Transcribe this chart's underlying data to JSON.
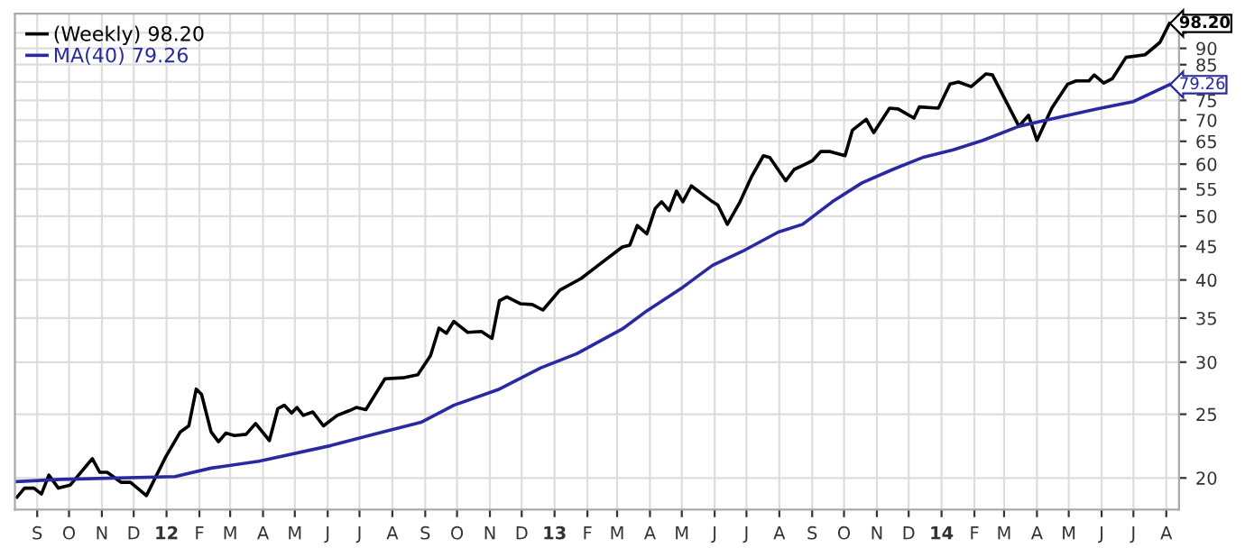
{
  "chart_data": {
    "type": "line",
    "log": "y",
    "grid": true,
    "legend": "top left",
    "marker": "none",
    "line_style": "solid",
    "xlim": [
      "2011-08-11",
      "2014-08-13"
    ],
    "ylim": [
      17.9,
      101.6
    ],
    "yticks": [
      20,
      25,
      30,
      35,
      40,
      45,
      50,
      55,
      60,
      65,
      70,
      75,
      {
        "value": 80,
        "label": null
      },
      85,
      90,
      {
        "value": 95,
        "label": null
      }
    ],
    "xticks": [
      {
        "value": "2011-09-01",
        "label": "S"
      },
      {
        "value": "2011-10-01",
        "label": "O"
      },
      {
        "value": "2011-11-01",
        "label": "N"
      },
      {
        "value": "2011-12-01",
        "label": "D"
      },
      {
        "value": "2012-01-01",
        "label": "12"
      },
      {
        "value": "2012-02-01",
        "label": "F"
      },
      {
        "value": "2012-03-01",
        "label": "M"
      },
      {
        "value": "2012-04-01",
        "label": "A"
      },
      {
        "value": "2012-05-01",
        "label": "M"
      },
      {
        "value": "2012-06-01",
        "label": "J"
      },
      {
        "value": "2012-07-01",
        "label": "J"
      },
      {
        "value": "2012-08-01",
        "label": "A"
      },
      {
        "value": "2012-09-01",
        "label": "S"
      },
      {
        "value": "2012-10-01",
        "label": "O"
      },
      {
        "value": "2012-11-01",
        "label": "N"
      },
      {
        "value": "2012-12-01",
        "label": "D"
      },
      {
        "value": "2013-01-01",
        "label": "13"
      },
      {
        "value": "2013-02-01",
        "label": "F"
      },
      {
        "value": "2013-03-01",
        "label": "M"
      },
      {
        "value": "2013-04-01",
        "label": "A"
      },
      {
        "value": "2013-05-01",
        "label": "M"
      },
      {
        "value": "2013-06-01",
        "label": "J"
      },
      {
        "value": "2013-07-01",
        "label": "J"
      },
      {
        "value": "2013-08-01",
        "label": "A"
      },
      {
        "value": "2013-09-01",
        "label": "S"
      },
      {
        "value": "2013-10-01",
        "label": "O"
      },
      {
        "value": "2013-11-01",
        "label": "N"
      },
      {
        "value": "2013-12-01",
        "label": "D"
      },
      {
        "value": "2014-01-01",
        "label": "14"
      },
      {
        "value": "2014-02-01",
        "label": "F"
      },
      {
        "value": "2014-03-01",
        "label": "M"
      },
      {
        "value": "2014-04-01",
        "label": "A"
      },
      {
        "value": "2014-05-01",
        "label": "M"
      },
      {
        "value": "2014-06-01",
        "label": "J"
      },
      {
        "value": "2014-07-01",
        "label": "J"
      },
      {
        "value": "2014-08-01",
        "label": "A"
      }
    ],
    "series": [
      {
        "name": "(Weekly) 98.20",
        "color": "#000000",
        "x": [
          "2011-08-13",
          "2011-08-20",
          "2011-08-29",
          "2011-09-05",
          "2011-09-12",
          "2011-09-21",
          "2011-10-02",
          "2011-10-23",
          "2011-10-30",
          "2011-11-06",
          "2011-11-19",
          "2011-11-28",
          "2011-12-13",
          "2011-12-31",
          "2012-01-14",
          "2012-01-22",
          "2012-01-29",
          "2012-02-03",
          "2012-02-12",
          "2012-02-19",
          "2012-02-26",
          "2012-03-05",
          "2012-03-16",
          "2012-03-25",
          "2012-04-07",
          "2012-04-15",
          "2012-04-21",
          "2012-04-28",
          "2012-05-03",
          "2012-05-09",
          "2012-05-18",
          "2012-05-28",
          "2012-06-10",
          "2012-06-21",
          "2012-06-28",
          "2012-07-07",
          "2012-07-25",
          "2012-08-11",
          "2012-08-25",
          "2012-09-06",
          "2012-09-14",
          "2012-09-21",
          "2012-09-28",
          "2012-10-11",
          "2012-10-24",
          "2012-11-03",
          "2012-11-10",
          "2012-11-17",
          "2012-11-30",
          "2012-12-11",
          "2012-12-21",
          "2013-01-06",
          "2013-01-26",
          "2013-02-12",
          "2013-03-06",
          "2013-03-13",
          "2013-03-20",
          "2013-03-29",
          "2013-04-06",
          "2013-04-12",
          "2013-04-19",
          "2013-04-26",
          "2013-05-02",
          "2013-05-10",
          "2013-05-30",
          "2013-06-04",
          "2013-06-13",
          "2013-06-25",
          "2013-07-06",
          "2013-07-17",
          "2013-07-23",
          "2013-08-07",
          "2013-08-15",
          "2013-08-23",
          "2013-09-01",
          "2013-09-09",
          "2013-09-18",
          "2013-10-02",
          "2013-10-09",
          "2013-10-22",
          "2013-10-29",
          "2013-11-13",
          "2013-11-21",
          "2013-12-06",
          "2013-12-11",
          "2013-12-29",
          "2014-01-09",
          "2014-01-17",
          "2014-01-29",
          "2014-02-12",
          "2014-02-18",
          "2014-03-15",
          "2014-03-24",
          "2014-04-01",
          "2014-04-15",
          "2014-04-30",
          "2014-05-08",
          "2014-05-20",
          "2014-05-25",
          "2014-06-03",
          "2014-06-11",
          "2014-06-24",
          "2014-07-12",
          "2014-07-26",
          "2014-08-04"
        ],
        "values": [
          18.7,
          19.3,
          19.3,
          18.9,
          20.2,
          19.3,
          19.5,
          21.4,
          20.4,
          20.4,
          19.7,
          19.7,
          18.8,
          21.5,
          23.5,
          24.0,
          27.3,
          26.8,
          23.5,
          22.7,
          23.4,
          23.2,
          23.3,
          24.2,
          22.8,
          25.5,
          25.8,
          25.1,
          25.6,
          24.9,
          25.2,
          24.0,
          24.9,
          25.3,
          25.6,
          25.4,
          28.3,
          28.4,
          28.7,
          30.7,
          33.8,
          33.2,
          34.6,
          33.3,
          33.4,
          32.6,
          37.2,
          37.7,
          36.8,
          36.7,
          36.0,
          38.6,
          40.2,
          42.2,
          44.9,
          45.2,
          48.4,
          47.0,
          51.4,
          52.6,
          51.0,
          54.6,
          52.6,
          55.6,
          52.6,
          52.0,
          48.6,
          52.6,
          57.5,
          61.8,
          61.4,
          56.6,
          58.9,
          59.7,
          60.7,
          62.7,
          62.7,
          61.8,
          67.6,
          70.2,
          67.0,
          73.0,
          72.8,
          70.5,
          73.3,
          73.0,
          79.4,
          80.0,
          78.7,
          82.3,
          82.0,
          68.5,
          71.2,
          65.2,
          73.0,
          79.4,
          80.3,
          80.3,
          82.0,
          79.7,
          80.9,
          87.2,
          88.0,
          91.9,
          98.2
        ]
      },
      {
        "name": "MA(40) 79.26",
        "color": "#2a2aa0",
        "x": [
          "2011-08-13",
          "2011-09-23",
          "2012-01-09",
          "2012-02-12",
          "2012-03-28",
          "2012-06-04",
          "2012-07-14",
          "2012-08-28",
          "2012-09-28",
          "2012-11-10",
          "2012-12-19",
          "2013-01-22",
          "2013-03-06",
          "2013-03-29",
          "2013-05-02",
          "2013-05-30",
          "2013-06-27",
          "2013-07-31",
          "2013-08-23",
          "2013-09-20",
          "2013-10-18",
          "2013-11-16",
          "2013-12-14",
          "2014-01-12",
          "2014-02-09",
          "2014-03-15",
          "2014-04-06",
          "2014-05-28",
          "2014-07-01",
          "2014-08-04"
        ],
        "values": [
          19.75,
          19.9,
          20.1,
          20.7,
          21.2,
          22.4,
          23.3,
          24.3,
          25.8,
          27.3,
          29.4,
          30.9,
          33.7,
          35.9,
          39.0,
          42.1,
          44.2,
          47.3,
          48.6,
          52.6,
          56.2,
          58.9,
          61.4,
          63.1,
          65.2,
          68.5,
          69.8,
          72.8,
          74.7,
          79.26
        ]
      }
    ],
    "annotations": [
      {
        "text": "98.20",
        "x": "2014-08-04",
        "y": 98.2
      },
      {
        "text": "79.26",
        "x": "2014-08-04",
        "y": 79.26
      }
    ]
  }
}
